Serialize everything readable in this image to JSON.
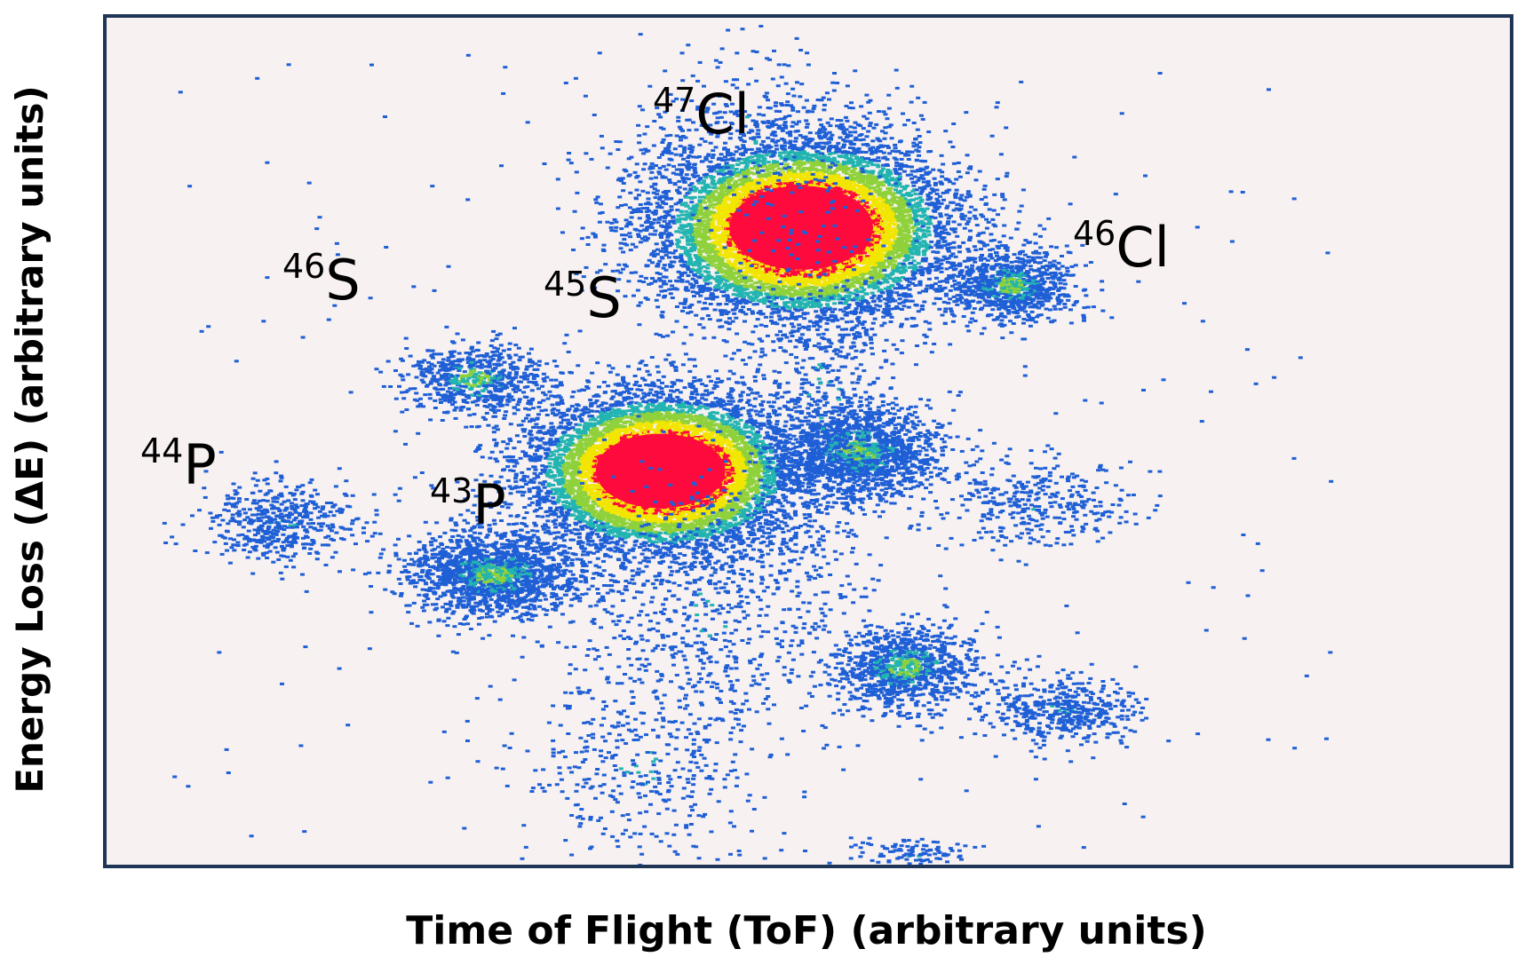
{
  "chart_data": {
    "type": "heatmap",
    "title": "",
    "xlabel": "Time of Flight (ToF) (arbitrary units)",
    "ylabel": "Energy Loss (ΔE) (arbitrary units)",
    "x_ticks": [],
    "y_ticks": [],
    "grid": false,
    "legend": "none",
    "colors": {
      "background": "#f7f1f1",
      "frame": "#1f3555",
      "low": "#1f5fd6",
      "mid_low": "#22b4b0",
      "mid": "#8fd13a",
      "mid_high": "#f2e600",
      "high": "#ff0a3c"
    },
    "clusters": [
      {
        "label": "47Cl",
        "mass": "47",
        "element": "Cl",
        "x": 0.495,
        "y": 0.751,
        "sx": 0.051,
        "sy": 0.052,
        "counts": 9000,
        "peak": "high"
      },
      {
        "label": "45S",
        "mass": "45",
        "element": "S",
        "x": 0.395,
        "y": 0.465,
        "sx": 0.046,
        "sy": 0.046,
        "counts": 8000,
        "peak": "high"
      },
      {
        "label": "46Cl",
        "mass": "46",
        "element": "Cl",
        "x": 0.642,
        "y": 0.685,
        "sx": 0.022,
        "sy": 0.021,
        "counts": 900,
        "peak": "mid"
      },
      {
        "label": "46S",
        "mass": "46",
        "element": "S",
        "x": 0.262,
        "y": 0.575,
        "sx": 0.025,
        "sy": 0.022,
        "counts": 650,
        "peak": "mid"
      },
      {
        "label": "43P",
        "mass": "43",
        "element": "P",
        "x": 0.275,
        "y": 0.345,
        "sx": 0.03,
        "sy": 0.025,
        "counts": 1600,
        "peak": "mid"
      },
      {
        "label": "44P",
        "mass": "44",
        "element": "P",
        "x": 0.125,
        "y": 0.405,
        "sx": 0.026,
        "sy": 0.023,
        "counts": 500,
        "peak": "low"
      },
      {
        "label": "",
        "x": 0.535,
        "y": 0.49,
        "sx": 0.029,
        "sy": 0.027,
        "counts": 1400,
        "peak": "mid"
      },
      {
        "label": "",
        "x": 0.568,
        "y": 0.235,
        "sx": 0.026,
        "sy": 0.025,
        "counts": 1000,
        "peak": "mid"
      },
      {
        "label": "",
        "x": 0.678,
        "y": 0.185,
        "sx": 0.027,
        "sy": 0.019,
        "counts": 450,
        "peak": "low"
      },
      {
        "label": "",
        "x": 0.66,
        "y": 0.43,
        "sx": 0.034,
        "sy": 0.025,
        "counts": 350,
        "peak": "low"
      },
      {
        "label": "",
        "x": 0.425,
        "y": 0.3,
        "sx": 0.048,
        "sy": 0.08,
        "counts": 700,
        "peak": "low"
      },
      {
        "label": "",
        "x": 0.38,
        "y": 0.12,
        "sx": 0.045,
        "sy": 0.06,
        "counts": 350,
        "peak": "low"
      },
      {
        "label": "",
        "x": 0.51,
        "y": 0.55,
        "sx": 0.03,
        "sy": 0.12,
        "counts": 500,
        "peak": "low"
      },
      {
        "label": "",
        "x": 0.575,
        "y": 0.015,
        "sx": 0.02,
        "sy": 0.01,
        "counts": 120,
        "peak": "low"
      },
      {
        "label": "",
        "x": 0.45,
        "y": 0.86,
        "sx": 0.05,
        "sy": 0.06,
        "counts": 250,
        "peak": "low"
      }
    ]
  }
}
